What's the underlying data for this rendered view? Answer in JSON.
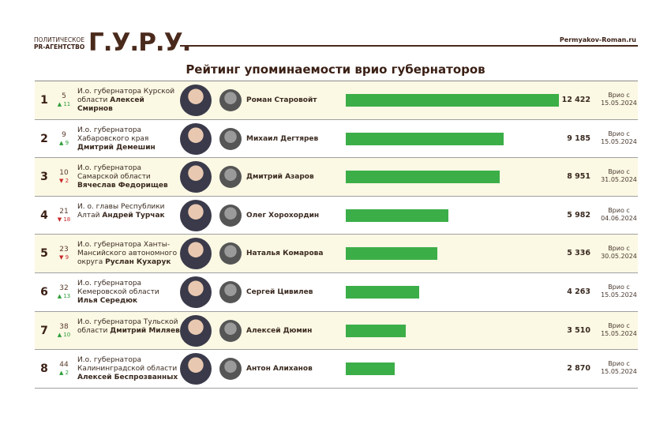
{
  "header": {
    "logo_line1": "ПОЛИТИЧЕСКОЕ",
    "logo_line2": "PR-АГЕНТСТВО",
    "logo_big": "Г.У.Р.У.",
    "site": "Permyakov-Roman.ru"
  },
  "colors": {
    "bar": "#3cae48",
    "up": "#2e9e3a",
    "down": "#c8282a",
    "brand": "#4a2a1c",
    "cream": "#fbf8e4"
  },
  "chart_data": {
    "type": "bar",
    "title": "Рейтинг упоминаемости врио губернаторов",
    "orientation": "horizontal",
    "rows": [
      {
        "rank": "1",
        "prev": "5",
        "change": "11",
        "dir": "up",
        "post": "И.о. губернатора Курской области",
        "name": "Алексей Смирнов",
        "predecessor": "Роман Старовойт",
        "value": 12422,
        "value_label": "12 422",
        "date_label": "Врио с",
        "date": "15.05.2024"
      },
      {
        "rank": "2",
        "prev": "9",
        "change": "9",
        "dir": "up",
        "post": "И.о. губернатора Хабаровского края",
        "name": "Дмитрий Демешин",
        "predecessor": "Михаил Дегтярев",
        "value": 9185,
        "value_label": "9 185",
        "date_label": "Врио с",
        "date": "15.05.2024"
      },
      {
        "rank": "3",
        "prev": "10",
        "change": "2",
        "dir": "down",
        "post": "И.о. губернатора Самарской области",
        "name": "Вячеслав Федорищев",
        "predecessor": "Дмитрий Азаров",
        "value": 8951,
        "value_label": "8 951",
        "date_label": "Врио с",
        "date": "31.05.2024"
      },
      {
        "rank": "4",
        "prev": "21",
        "change": "18",
        "dir": "down",
        "post": "И. о. главы Республики Алтай",
        "name": "Андрей Турчак",
        "predecessor": "Олег Хорохордин",
        "value": 5982,
        "value_label": "5 982",
        "date_label": "Врио с",
        "date": "04.06.2024"
      },
      {
        "rank": "5",
        "prev": "23",
        "change": "9",
        "dir": "down",
        "post": "И.о. губернатора Ханты-Мансийского автономного округа",
        "name": "Руслан Кухарук",
        "predecessor": "Наталья Комарова",
        "value": 5336,
        "value_label": "5 336",
        "date_label": "Врио с",
        "date": "30.05.2024"
      },
      {
        "rank": "6",
        "prev": "32",
        "change": "13",
        "dir": "up",
        "post": "И.о. губернатора Кемеровской области",
        "name": "Илья Середюк",
        "predecessor": "Сергей Цивилев",
        "value": 4263,
        "value_label": "4 263",
        "date_label": "Врио с",
        "date": "15.05.2024"
      },
      {
        "rank": "7",
        "prev": "38",
        "change": "10",
        "dir": "up",
        "post": "И.о. губернатора Тульской области",
        "name": "Дмитрий Миляев",
        "predecessor": "Алексей Дюмин",
        "value": 3510,
        "value_label": "3 510",
        "date_label": "Врио с",
        "date": "15.05.2024"
      },
      {
        "rank": "8",
        "prev": "44",
        "change": "2",
        "dir": "up",
        "post": "И.о. губернатора Калининградской области",
        "name": "Алексей Беспрозванных",
        "predecessor": "Антон Алиханов",
        "value": 2870,
        "value_label": "2 870",
        "date_label": "Врио с",
        "date": "15.05.2024"
      }
    ]
  }
}
